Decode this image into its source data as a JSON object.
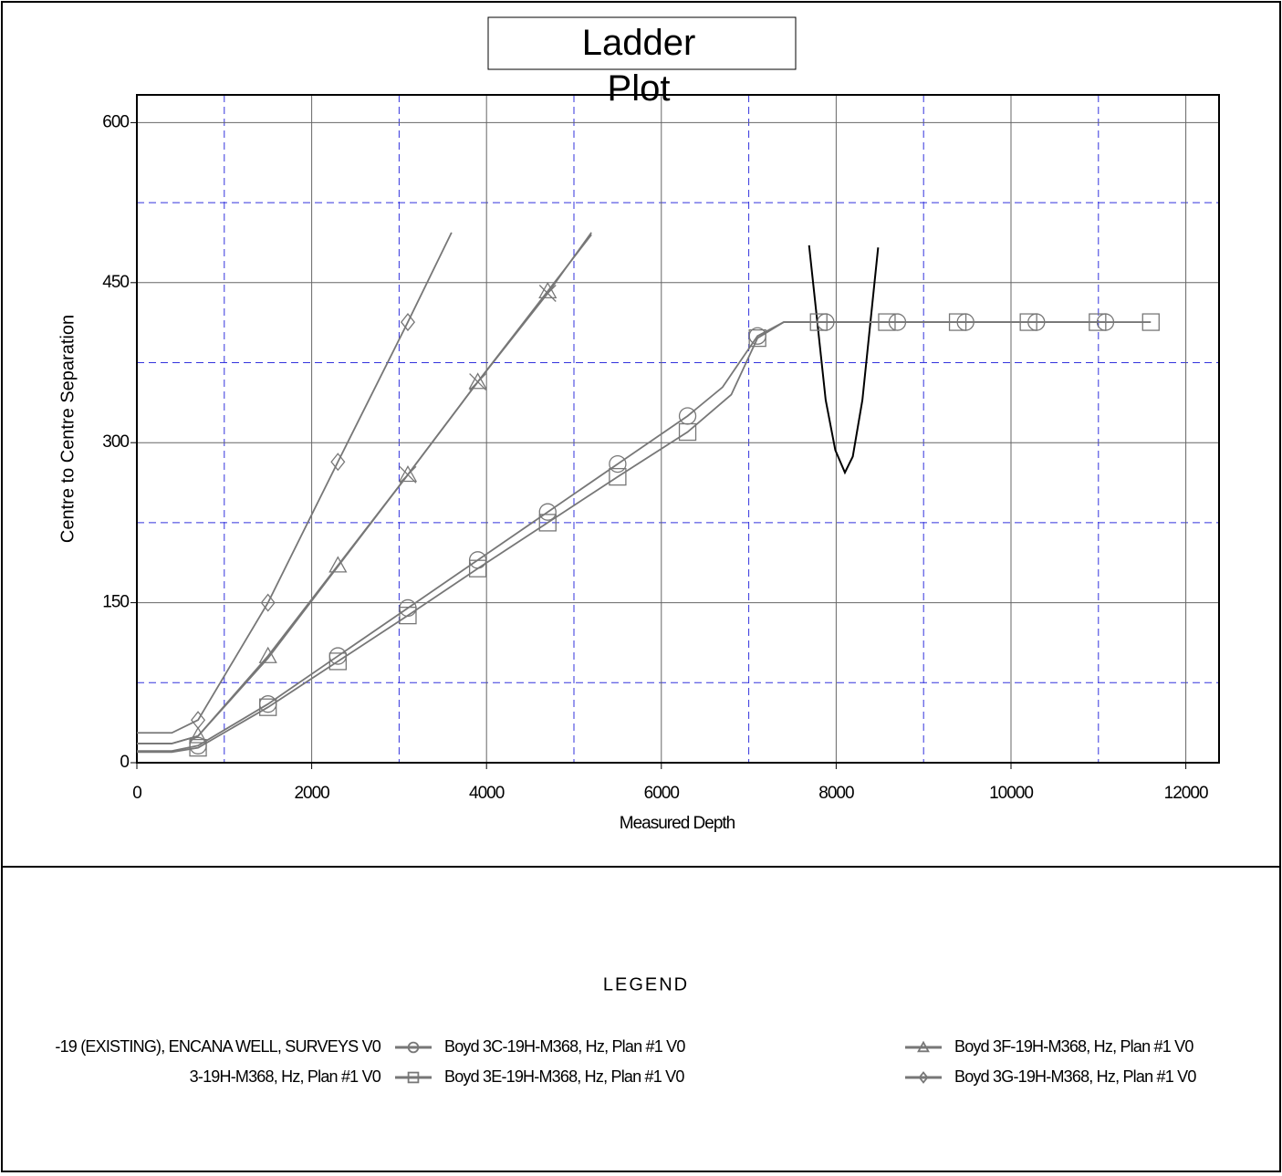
{
  "chart_data": {
    "type": "line",
    "title": "Ladder Plot",
    "x_label": "Measured Depth",
    "y_label": "Centre to Centre Separation",
    "legend_title": "LEGEND",
    "xlim": [
      0,
      12380
    ],
    "ylim": [
      0,
      626
    ],
    "xticks": [
      0,
      2000,
      4000,
      6000,
      8000,
      10000,
      12000
    ],
    "yticks": [
      0,
      150,
      300,
      450,
      600
    ],
    "minor_xticks": [
      1000,
      3000,
      5000,
      7000,
      9000,
      11000
    ],
    "minor_yticks": [
      75,
      225,
      375,
      525
    ],
    "grid": true,
    "series": [
      {
        "name": "-19 (EXISTING), ENCANA WELL, SURVEYS V0",
        "color": "#000000",
        "marker": "none",
        "x": [
          7690,
          7880,
          7990,
          8100,
          8190,
          8300,
          8480
        ],
        "values": [
          485,
          340,
          293,
          272,
          287,
          340,
          483
        ],
        "marker_x": [],
        "marker_values": []
      },
      {
        "name": "3-19H-M368, Hz, Plan #1 V0",
        "color": "#777777",
        "marker": "x",
        "x": [
          0,
          400,
          700,
          1500,
          2300,
          3100,
          3900,
          4700,
          5200
        ],
        "values": [
          18,
          18,
          25,
          98,
          184,
          270,
          357,
          440,
          497
        ],
        "marker_x": [
          3100,
          3900,
          4700
        ],
        "marker_values": [
          270,
          357,
          440
        ]
      },
      {
        "name": "Boyd 3C-19H-M368, Hz, Plan #1 V0",
        "color": "#777777",
        "marker": "circle",
        "x": [
          0,
          400,
          700,
          1500,
          2300,
          3100,
          3900,
          4700,
          5500,
          6300,
          6700,
          7100,
          7400,
          11080
        ],
        "values": [
          11,
          11,
          16,
          55,
          100,
          145,
          190,
          235,
          280,
          325,
          352,
          400,
          413,
          413
        ],
        "marker_x": [
          700,
          1500,
          2300,
          3100,
          3900,
          4700,
          5500,
          6300,
          7100,
          7880,
          8700,
          9480,
          10290,
          11080
        ],
        "marker_values": [
          16,
          55,
          100,
          145,
          190,
          235,
          280,
          325,
          400,
          413,
          413,
          413,
          413,
          413
        ]
      },
      {
        "name": "Boyd 3E-19H-M368, Hz, Plan #1 V0",
        "color": "#777777",
        "marker": "square",
        "x": [
          0,
          400,
          700,
          1500,
          2300,
          3100,
          3900,
          4700,
          5500,
          6300,
          6800,
          7100,
          7400,
          11600
        ],
        "values": [
          10,
          10,
          14,
          52,
          95,
          138,
          182,
          225,
          268,
          310,
          345,
          398,
          413,
          413
        ],
        "marker_x": [
          700,
          1500,
          2300,
          3100,
          3900,
          4700,
          5500,
          6300,
          7100,
          7800,
          8580,
          9390,
          10200,
          10990,
          11600
        ],
        "marker_values": [
          14,
          52,
          95,
          138,
          182,
          225,
          268,
          310,
          398,
          413,
          413,
          413,
          413,
          413,
          413
        ]
      },
      {
        "name": "Boyd 3F-19H-M368, Hz, Plan #1 V0",
        "color": "#777777",
        "marker": "triangle",
        "x": [
          0,
          400,
          700,
          1500,
          2300,
          3100,
          3900,
          4700,
          5200
        ],
        "values": [
          18,
          18,
          25,
          100,
          185,
          270,
          357,
          442,
          495
        ],
        "marker_x": [
          700,
          1500,
          2300,
          3100,
          3900,
          4700
        ],
        "marker_values": [
          25,
          100,
          185,
          270,
          357,
          442
        ]
      },
      {
        "name": "Boyd 3G-19H-M368, Hz, Plan #1 V0",
        "color": "#777777",
        "marker": "diamond",
        "x": [
          0,
          400,
          700,
          1500,
          2300,
          3100,
          3600
        ],
        "values": [
          28,
          28,
          40,
          150,
          282,
          413,
          497
        ],
        "marker_x": [
          700,
          1500,
          2300,
          3100
        ],
        "marker_values": [
          40,
          150,
          282,
          413
        ]
      }
    ]
  }
}
